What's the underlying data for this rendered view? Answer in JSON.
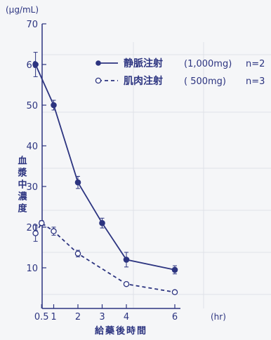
{
  "chart_data": {
    "type": "line",
    "unit_label": "(μg/mL)",
    "ylabel": "血漿中濃度",
    "xlabel": "給藥後時間",
    "x_unit": "(hr)",
    "ylim": [
      0,
      70
    ],
    "y_ticks": [
      10,
      20,
      30,
      40,
      50,
      60,
      70
    ],
    "x_ticks": [
      {
        "value": 0.5,
        "label": "0.5"
      },
      {
        "value": 1,
        "label": "1"
      },
      {
        "value": 2,
        "label": "2"
      },
      {
        "value": 3,
        "label": "3"
      },
      {
        "value": 4,
        "label": "4"
      },
      {
        "value": 6,
        "label": "6"
      }
    ],
    "legend_position": "top-right",
    "series": [
      {
        "name": "静脈注射",
        "dose": "(1,000mg)",
        "n": "n=2",
        "style": "solid",
        "marker": "filled-circle",
        "x": [
          0.25,
          1,
          2,
          3,
          4,
          6
        ],
        "y": [
          60,
          50,
          31,
          21,
          12,
          9.5
        ],
        "err": [
          3,
          1.2,
          1.5,
          1.2,
          1.8,
          1
        ]
      },
      {
        "name": "肌肉注射",
        "dose": "( 500mg)",
        "n": "n=3",
        "style": "dashed",
        "marker": "open-circle",
        "x": [
          0.25,
          0.5,
          1,
          2,
          3,
          4,
          6
        ],
        "y": [
          18.5,
          21,
          19,
          13.5,
          null,
          6,
          4
        ],
        "err": [
          2,
          0.6,
          1,
          0.8,
          null,
          0,
          0
        ]
      }
    ]
  },
  "colors": {
    "line": "#2c3480",
    "background": "#f5f6f8"
  }
}
